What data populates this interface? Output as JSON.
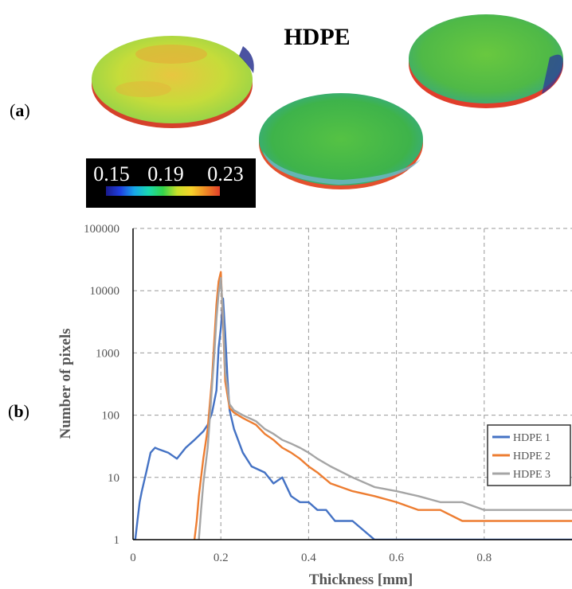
{
  "panel_a": {
    "label_open": "(",
    "label_letter": "a",
    "label_close": ")",
    "title": "HDPE",
    "colorbar": {
      "ticks": [
        "0.15",
        "0.19",
        "0.23"
      ],
      "colors": [
        "#1a1a8c",
        "#1f3fe0",
        "#18a7e8",
        "#19d9b0",
        "#33d34a",
        "#c8e02a",
        "#f7d22a",
        "#f08a25",
        "#e3402a"
      ]
    }
  },
  "panel_b": {
    "label_open": "(",
    "label_letter": "b",
    "label_close": ")"
  },
  "chart_data": {
    "type": "line",
    "xlabel": "Thickness [mm]",
    "ylabel": "Number of pixels",
    "xlim": [
      0,
      1.0
    ],
    "ylim": [
      1,
      100000
    ],
    "yscale": "log",
    "xticks": [
      "0",
      "0.2",
      "0.4",
      "0.6",
      "0.8"
    ],
    "yticks": [
      "1",
      "10",
      "100",
      "1000",
      "10000",
      "100000"
    ],
    "grid": true,
    "legend_position": "right",
    "series": [
      {
        "name": "HDPE 1",
        "color": "#4472c4",
        "x": [
          0.0,
          0.005,
          0.01,
          0.015,
          0.02,
          0.03,
          0.04,
          0.05,
          0.06,
          0.08,
          0.1,
          0.12,
          0.14,
          0.16,
          0.17,
          0.18,
          0.19,
          0.195,
          0.2,
          0.205,
          0.21,
          0.215,
          0.22,
          0.23,
          0.25,
          0.27,
          0.3,
          0.32,
          0.34,
          0.36,
          0.38,
          0.4,
          0.42,
          0.44,
          0.46,
          0.5,
          0.55,
          0.6,
          0.65,
          0.7,
          0.75,
          0.8,
          0.85,
          0.9,
          0.95,
          1.0
        ],
        "y": [
          1,
          1,
          2,
          4,
          6,
          12,
          25,
          30,
          28,
          25,
          20,
          30,
          40,
          55,
          70,
          110,
          250,
          1200,
          2500,
          7500,
          2000,
          400,
          120,
          60,
          25,
          15,
          12,
          8,
          10,
          5,
          4,
          4,
          3,
          3,
          2,
          2,
          1,
          1,
          1,
          1,
          1,
          1,
          1,
          1,
          1,
          1
        ]
      },
      {
        "name": "HDPE 2",
        "color": "#ed7d31",
        "x": [
          0.14,
          0.145,
          0.15,
          0.155,
          0.16,
          0.17,
          0.175,
          0.18,
          0.185,
          0.19,
          0.195,
          0.2,
          0.205,
          0.21,
          0.22,
          0.23,
          0.25,
          0.28,
          0.3,
          0.32,
          0.34,
          0.36,
          0.38,
          0.4,
          0.42,
          0.45,
          0.5,
          0.55,
          0.6,
          0.65,
          0.7,
          0.75,
          0.8,
          0.85,
          0.9,
          0.95,
          1.0
        ],
        "y": [
          1,
          2,
          5,
          10,
          20,
          60,
          150,
          400,
          1500,
          6000,
          14000,
          20000,
          3000,
          350,
          130,
          110,
          90,
          70,
          50,
          40,
          30,
          25,
          20,
          15,
          12,
          8,
          6,
          5,
          4,
          3,
          3,
          2,
          2,
          2,
          2,
          2,
          2
        ]
      },
      {
        "name": "HDPE 3",
        "color": "#a5a5a5",
        "x": [
          0.15,
          0.155,
          0.16,
          0.17,
          0.175,
          0.18,
          0.185,
          0.19,
          0.195,
          0.2,
          0.205,
          0.21,
          0.22,
          0.23,
          0.25,
          0.28,
          0.3,
          0.32,
          0.34,
          0.36,
          0.38,
          0.4,
          0.42,
          0.45,
          0.5,
          0.55,
          0.6,
          0.65,
          0.7,
          0.75,
          0.8,
          0.85,
          0.9,
          0.95,
          1.0
        ],
        "y": [
          1,
          3,
          8,
          30,
          90,
          300,
          900,
          3500,
          9000,
          16000,
          4000,
          500,
          150,
          120,
          100,
          80,
          60,
          50,
          40,
          35,
          30,
          25,
          20,
          15,
          10,
          7,
          6,
          5,
          4,
          4,
          3,
          3,
          3,
          3,
          3
        ]
      }
    ]
  }
}
